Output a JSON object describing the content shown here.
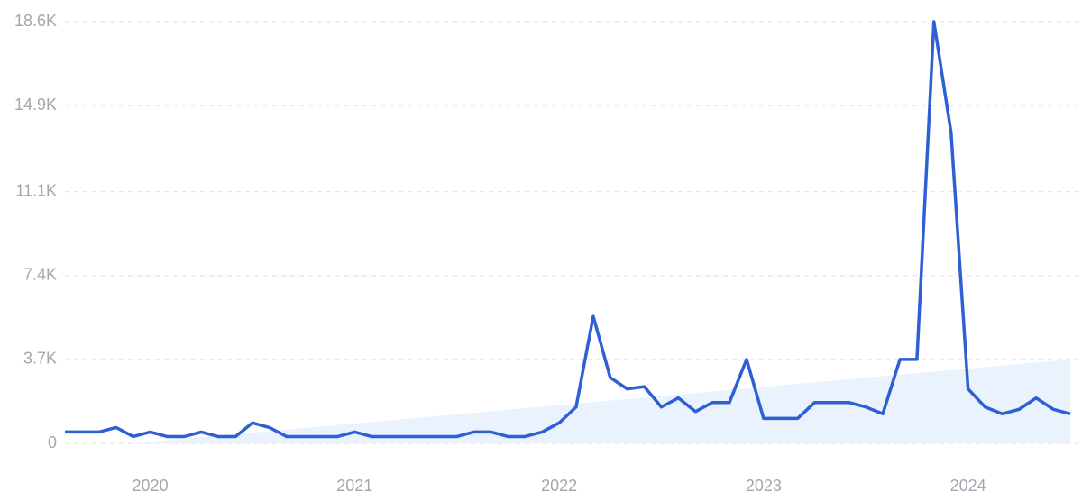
{
  "chart_data": {
    "type": "line",
    "x": [
      2019.583,
      2019.667,
      2019.75,
      2019.833,
      2019.917,
      2020.0,
      2020.083,
      2020.167,
      2020.25,
      2020.333,
      2020.417,
      2020.5,
      2020.583,
      2020.667,
      2020.75,
      2020.833,
      2020.917,
      2021.0,
      2021.083,
      2021.167,
      2021.25,
      2021.333,
      2021.417,
      2021.5,
      2021.583,
      2021.667,
      2021.75,
      2021.833,
      2021.917,
      2022.0,
      2022.083,
      2022.167,
      2022.25,
      2022.333,
      2022.417,
      2022.5,
      2022.583,
      2022.667,
      2022.75,
      2022.833,
      2022.917,
      2023.0,
      2023.083,
      2023.167,
      2023.25,
      2023.333,
      2023.417,
      2023.5,
      2023.583,
      2023.667,
      2023.75,
      2023.833,
      2023.917,
      2024.0,
      2024.083,
      2024.167,
      2024.25,
      2024.333,
      2024.417,
      2024.5
    ],
    "series": [
      {
        "color": "#2f5fd4",
        "values": [
          500,
          500,
          500,
          700,
          300,
          500,
          300,
          300,
          500,
          300,
          300,
          900,
          700,
          300,
          300,
          300,
          300,
          500,
          300,
          300,
          300,
          300,
          300,
          300,
          500,
          500,
          300,
          300,
          500,
          900,
          1600,
          5600,
          2900,
          2400,
          2500,
          1600,
          2000,
          1400,
          1800,
          1800,
          3700,
          1100,
          1100,
          1100,
          1800,
          1800,
          1800,
          1600,
          1300,
          3700,
          3700,
          18600,
          13700,
          2400,
          1600,
          1300,
          1500,
          2000,
          1500,
          1300
        ]
      }
    ],
    "trend": {
      "x": [
        2019.917,
        2024.5
      ],
      "values": [
        0,
        3700
      ],
      "color": "#e9f2fd"
    },
    "xlim": [
      2019.583,
      2024.5
    ],
    "xticks": [
      2020,
      2021,
      2022,
      2023,
      2024
    ],
    "ylim": [
      0,
      18600
    ],
    "yticks": [
      0,
      {
        "value": 3700,
        "label": "3.7K"
      },
      {
        "value": 7400,
        "label": "7.4K"
      },
      {
        "value": 11100,
        "label": "11.1K"
      },
      {
        "value": 14900,
        "label": "14.9K"
      },
      {
        "value": 18600,
        "label": "18.6K"
      }
    ],
    "grid": true
  }
}
